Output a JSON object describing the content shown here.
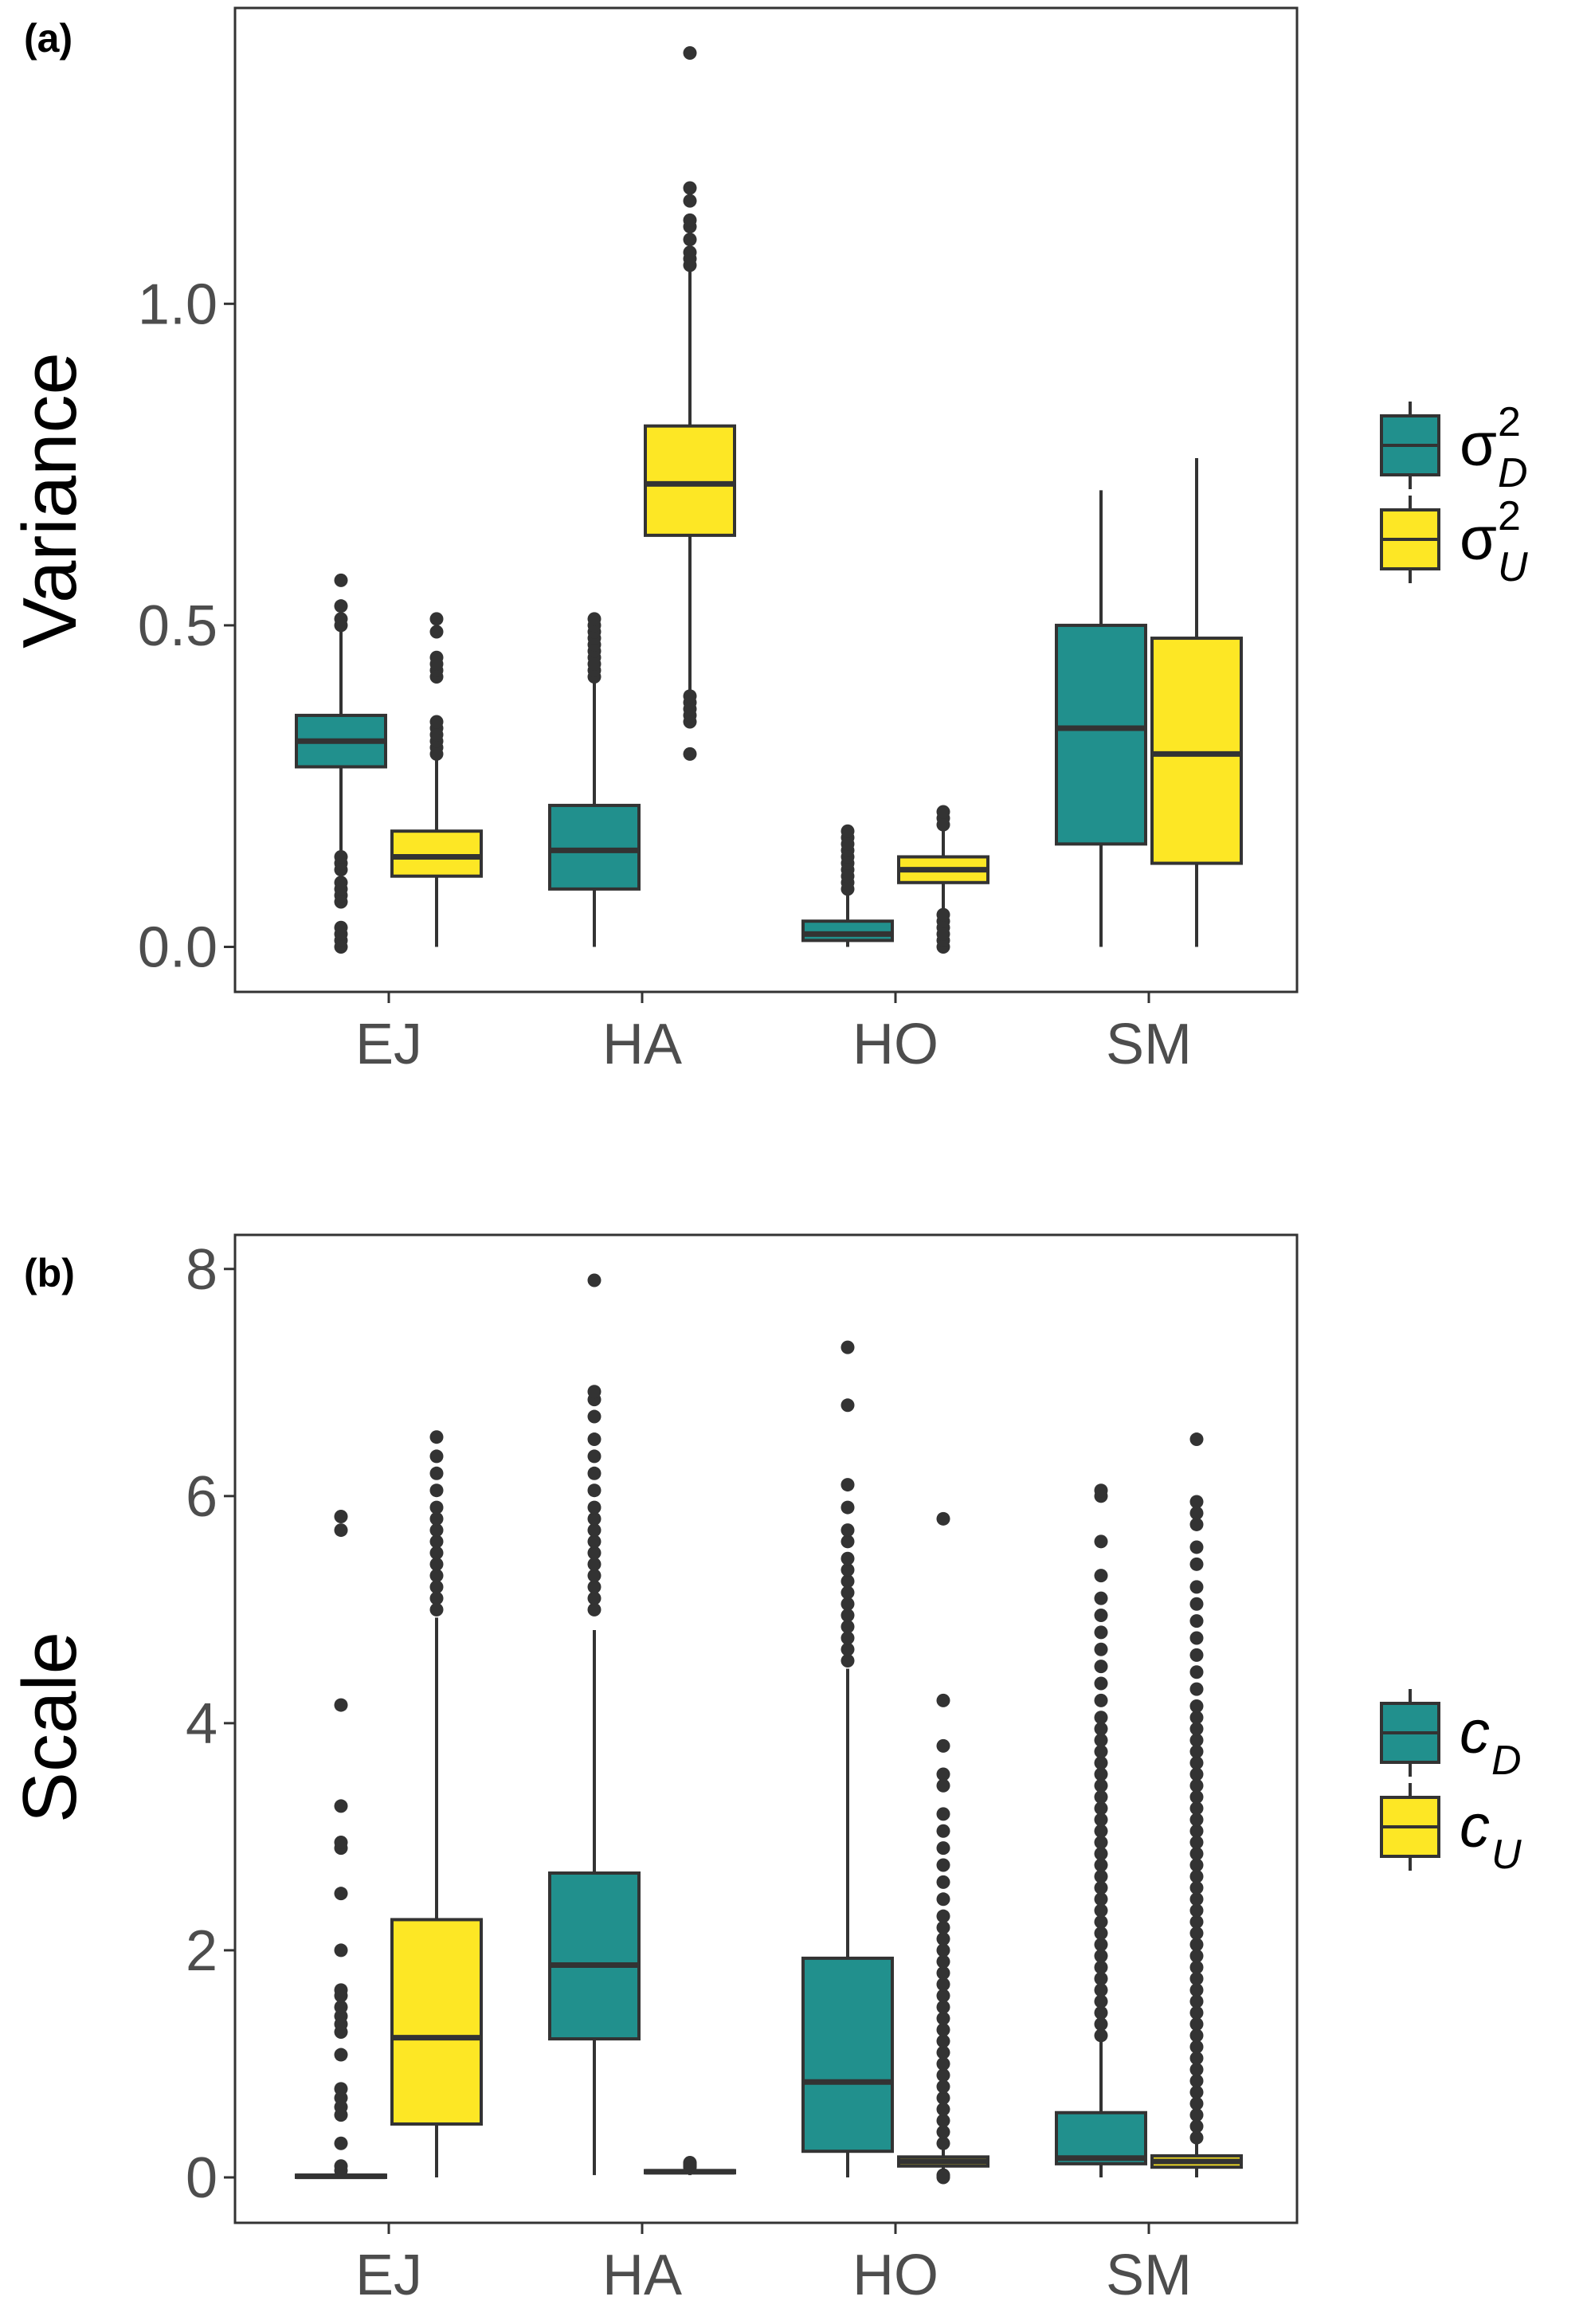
{
  "colors": {
    "D": "#21908d",
    "U": "#fde725",
    "outline": "#333333",
    "axis": "#333333"
  },
  "chart_data": [
    {
      "type": "box",
      "panel_label": "(a)",
      "ylabel": "Variance",
      "xlabel": "",
      "categories": [
        "EJ",
        "HA",
        "HO",
        "SM"
      ],
      "ylim": [
        -0.07,
        1.46
      ],
      "yticks": [
        0.0,
        0.5,
        1.0
      ],
      "ytick_labels": [
        "0.0",
        "0.5",
        "1.0"
      ],
      "legend": {
        "position": "right",
        "entries": [
          {
            "key": "D",
            "symbol": "σ",
            "sup": "2",
            "sub": "D"
          },
          {
            "key": "U",
            "symbol": "σ",
            "sup": "2",
            "sub": "U"
          }
        ]
      },
      "series": [
        {
          "key": "D",
          "boxes": [
            {
              "category": "EJ",
              "whisker_low": 0.15,
              "q1": 0.28,
              "median": 0.32,
              "q3": 0.36,
              "whisker_high": 0.49,
              "outliers": [
                0.0,
                0.01,
                0.02,
                0.03,
                0.07,
                0.08,
                0.09,
                0.1,
                0.12,
                0.13,
                0.14,
                0.5,
                0.51,
                0.53,
                0.57
              ]
            },
            {
              "category": "HA",
              "whisker_low": 0.0,
              "q1": 0.09,
              "median": 0.15,
              "q3": 0.22,
              "whisker_high": 0.41,
              "outliers": [
                0.42,
                0.43,
                0.44,
                0.45,
                0.46,
                0.47,
                0.48,
                0.49,
                0.5,
                0.51
              ]
            },
            {
              "category": "HO",
              "whisker_low": 0.0,
              "q1": 0.01,
              "median": 0.02,
              "q3": 0.04,
              "whisker_high": 0.08,
              "outliers": [
                0.09,
                0.1,
                0.11,
                0.12,
                0.13,
                0.14,
                0.15,
                0.16,
                0.17,
                0.18
              ]
            },
            {
              "category": "SM",
              "whisker_low": 0.0,
              "q1": 0.16,
              "median": 0.34,
              "q3": 0.5,
              "whisker_high": 0.71,
              "outliers": []
            }
          ]
        },
        {
          "key": "U",
          "boxes": [
            {
              "category": "EJ",
              "whisker_low": 0.0,
              "q1": 0.11,
              "median": 0.14,
              "q3": 0.18,
              "whisker_high": 0.29,
              "outliers": [
                0.3,
                0.31,
                0.32,
                0.33,
                0.34,
                0.35,
                0.42,
                0.43,
                0.44,
                0.45,
                0.49,
                0.51
              ]
            },
            {
              "category": "HA",
              "whisker_low": 0.4,
              "q1": 0.64,
              "median": 0.72,
              "q3": 0.81,
              "whisker_high": 1.05,
              "outliers": [
                0.3,
                0.35,
                0.36,
                0.37,
                0.38,
                0.39,
                1.06,
                1.07,
                1.08,
                1.1,
                1.12,
                1.13,
                1.16,
                1.18,
                1.39
              ]
            },
            {
              "category": "HO",
              "whisker_low": 0.06,
              "q1": 0.1,
              "median": 0.12,
              "q3": 0.14,
              "whisker_high": 0.18,
              "outliers": [
                0.0,
                0.01,
                0.02,
                0.03,
                0.04,
                0.05,
                0.19,
                0.2,
                0.21
              ]
            },
            {
              "category": "SM",
              "whisker_low": 0.0,
              "q1": 0.13,
              "median": 0.3,
              "q3": 0.48,
              "whisker_high": 0.76,
              "outliers": []
            }
          ]
        }
      ]
    },
    {
      "type": "box",
      "panel_label": "(b)",
      "ylabel": "Scale",
      "xlabel": "",
      "categories": [
        "EJ",
        "HA",
        "HO",
        "SM"
      ],
      "ylim": [
        -0.4,
        8.3
      ],
      "yticks": [
        0,
        2,
        4,
        6,
        8
      ],
      "ytick_labels": [
        "0",
        "2",
        "4",
        "6",
        "8"
      ],
      "legend": {
        "position": "right",
        "entries": [
          {
            "key": "D",
            "symbol": "c",
            "sup": "",
            "sub": "D"
          },
          {
            "key": "U",
            "symbol": "c",
            "sup": "",
            "sub": "U"
          }
        ]
      },
      "series": [
        {
          "key": "D",
          "boxes": [
            {
              "category": "EJ",
              "whisker_low": 0.0,
              "q1": 0.0,
              "median": 0.01,
              "q3": 0.02,
              "whisker_high": 0.04,
              "outliers": [
                0.06,
                0.1,
                0.3,
                0.55,
                0.62,
                0.7,
                0.78,
                1.08,
                1.28,
                1.35,
                1.42,
                1.5,
                1.6,
                1.65,
                2.0,
                2.5,
                2.9,
                2.95,
                3.27,
                4.16,
                5.7,
                5.82
              ]
            },
            {
              "category": "HA",
              "whisker_low": 0.02,
              "q1": 1.22,
              "median": 1.87,
              "q3": 2.68,
              "whisker_high": 4.82,
              "outliers": [
                5.0,
                5.1,
                5.2,
                5.3,
                5.4,
                5.5,
                5.6,
                5.7,
                5.8,
                5.9,
                6.05,
                6.2,
                6.35,
                6.5,
                6.7,
                6.85,
                6.92,
                7.9
              ]
            },
            {
              "category": "HO",
              "whisker_low": 0.0,
              "q1": 0.23,
              "median": 0.84,
              "q3": 1.93,
              "whisker_high": 4.48,
              "outliers": [
                4.55,
                4.65,
                4.75,
                4.85,
                4.95,
                5.05,
                5.15,
                5.25,
                5.35,
                5.45,
                5.6,
                5.7,
                5.9,
                6.1,
                6.8,
                7.31
              ]
            },
            {
              "category": "SM",
              "whisker_low": 0.0,
              "q1": 0.12,
              "median": 0.17,
              "q3": 0.57,
              "whisker_high": 1.2,
              "outliers": [
                1.25,
                1.35,
                1.45,
                1.55,
                1.65,
                1.75,
                1.85,
                1.95,
                2.05,
                2.15,
                2.25,
                2.35,
                2.45,
                2.55,
                2.65,
                2.75,
                2.85,
                2.95,
                3.05,
                3.15,
                3.25,
                3.35,
                3.45,
                3.55,
                3.65,
                3.75,
                3.85,
                3.95,
                4.05,
                4.2,
                4.35,
                4.5,
                4.65,
                4.8,
                4.95,
                5.1,
                5.3,
                5.6,
                6.0,
                6.05
              ]
            }
          ]
        },
        {
          "key": "U",
          "boxes": [
            {
              "category": "EJ",
              "whisker_low": 0.0,
              "q1": 0.47,
              "median": 1.23,
              "q3": 2.27,
              "whisker_high": 4.93,
              "outliers": [
                5.0,
                5.1,
                5.2,
                5.3,
                5.4,
                5.5,
                5.6,
                5.7,
                5.8,
                5.9,
                6.05,
                6.2,
                6.35,
                6.52
              ]
            },
            {
              "category": "HA",
              "whisker_low": 0.02,
              "q1": 0.04,
              "median": 0.05,
              "q3": 0.06,
              "whisker_high": 0.08,
              "outliers": [
                0.09,
                0.1,
                0.11,
                0.12,
                0.13
              ]
            },
            {
              "category": "HO",
              "whisker_low": 0.05,
              "q1": 0.1,
              "median": 0.14,
              "q3": 0.18,
              "whisker_high": 0.25,
              "outliers": [
                0.0,
                0.02,
                0.3,
                0.4,
                0.5,
                0.6,
                0.7,
                0.8,
                0.9,
                1.0,
                1.1,
                1.2,
                1.3,
                1.4,
                1.5,
                1.6,
                1.7,
                1.8,
                1.9,
                2.0,
                2.1,
                2.2,
                2.3,
                2.45,
                2.6,
                2.75,
                2.9,
                3.05,
                3.2,
                3.45,
                3.55,
                3.8,
                4.2,
                5.8
              ]
            },
            {
              "category": "SM",
              "whisker_low": 0.0,
              "q1": 0.09,
              "median": 0.14,
              "q3": 0.19,
              "whisker_high": 0.3,
              "outliers": [
                0.35,
                0.45,
                0.55,
                0.65,
                0.75,
                0.85,
                0.95,
                1.05,
                1.15,
                1.25,
                1.35,
                1.45,
                1.55,
                1.65,
                1.75,
                1.85,
                1.95,
                2.05,
                2.15,
                2.25,
                2.35,
                2.45,
                2.55,
                2.65,
                2.75,
                2.85,
                2.95,
                3.05,
                3.15,
                3.25,
                3.35,
                3.45,
                3.55,
                3.65,
                3.75,
                3.85,
                3.95,
                4.05,
                4.15,
                4.3,
                4.45,
                4.6,
                4.75,
                4.9,
                5.05,
                5.2,
                5.4,
                5.55,
                5.75,
                5.85,
                5.95,
                6.5
              ]
            }
          ]
        }
      ]
    }
  ]
}
